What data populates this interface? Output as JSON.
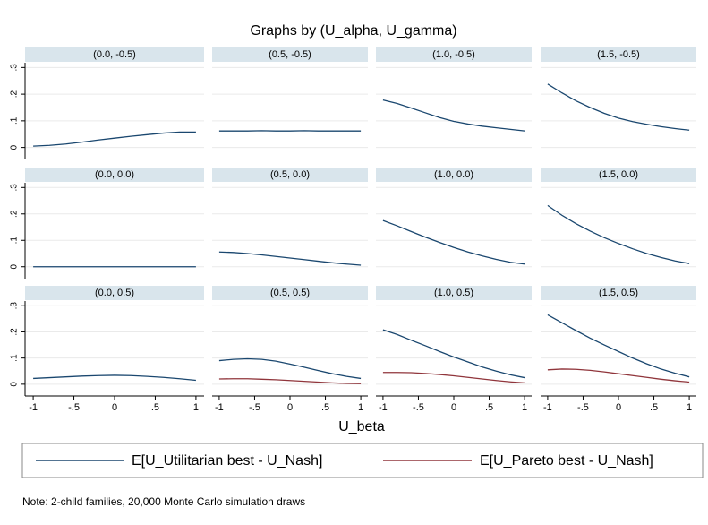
{
  "title": "Graphs by (U_alpha, U_gamma)",
  "xlabel": "U_beta",
  "note": "Note: 2-child families, 20,000 Monte Carlo simulation draws",
  "chart_data": [
    {
      "type": "line",
      "title": "(0.0, -0.5)",
      "x": [
        -1,
        -0.8,
        -0.6,
        -0.4,
        -0.2,
        0,
        0.2,
        0.4,
        0.6,
        0.8,
        1
      ],
      "series": [
        {
          "name": "E[U_Utilitarian best - U_Nash]",
          "color": "#1a476f",
          "values": [
            0.005,
            0.008,
            0.013,
            0.02,
            0.028,
            0.035,
            0.042,
            0.048,
            0.054,
            0.058,
            0.058
          ]
        }
      ],
      "xlim": [
        -1.1,
        1.1
      ],
      "xticks": [
        -1,
        {
          "value": -0.5,
          "label": "-.5"
        },
        0,
        {
          "value": 0.5,
          "label": ".5"
        },
        1
      ],
      "ylim": [
        -0.045,
        0.318
      ],
      "yticks": [
        0,
        {
          "value": 0.1,
          "label": ".1"
        },
        {
          "value": 0.2,
          "label": ".2"
        },
        {
          "value": 0.3,
          "label": ".3"
        }
      ],
      "grid": true
    },
    {
      "type": "line",
      "title": "(0.5, -0.5)",
      "x": [
        -1,
        -0.8,
        -0.6,
        -0.4,
        -0.2,
        0,
        0.2,
        0.4,
        0.6,
        0.8,
        1
      ],
      "series": [
        {
          "name": "E[U_Utilitarian best - U_Nash]",
          "color": "#1a476f",
          "values": [
            0.062,
            0.062,
            0.062,
            0.063,
            0.062,
            0.062,
            0.063,
            0.062,
            0.062,
            0.062,
            0.062
          ]
        }
      ],
      "xlim": [
        -1.1,
        1.1
      ],
      "xticks": [
        -1,
        {
          "value": -0.5,
          "label": "-.5"
        },
        0,
        {
          "value": 0.5,
          "label": ".5"
        },
        1
      ],
      "ylim": [
        -0.045,
        0.318
      ],
      "yticks": [
        0,
        {
          "value": 0.1,
          "label": ".1"
        },
        {
          "value": 0.2,
          "label": ".2"
        },
        {
          "value": 0.3,
          "label": ".3"
        }
      ],
      "grid": true
    },
    {
      "type": "line",
      "title": "(1.0, -0.5)",
      "x": [
        -1,
        -0.8,
        -0.6,
        -0.4,
        -0.2,
        0,
        0.2,
        0.4,
        0.6,
        0.8,
        1
      ],
      "series": [
        {
          "name": "E[U_Utilitarian best - U_Nash]",
          "color": "#1a476f",
          "values": [
            0.178,
            0.165,
            0.148,
            0.13,
            0.112,
            0.098,
            0.088,
            0.08,
            0.074,
            0.068,
            0.062
          ]
        }
      ],
      "xlim": [
        -1.1,
        1.1
      ],
      "xticks": [
        -1,
        {
          "value": -0.5,
          "label": "-.5"
        },
        0,
        {
          "value": 0.5,
          "label": ".5"
        },
        1
      ],
      "ylim": [
        -0.045,
        0.318
      ],
      "yticks": [
        0,
        {
          "value": 0.1,
          "label": ".1"
        },
        {
          "value": 0.2,
          "label": ".2"
        },
        {
          "value": 0.3,
          "label": ".3"
        }
      ],
      "grid": true
    },
    {
      "type": "line",
      "title": "(1.5, -0.5)",
      "x": [
        -1,
        -0.8,
        -0.6,
        -0.4,
        -0.2,
        0,
        0.2,
        0.4,
        0.6,
        0.8,
        1
      ],
      "series": [
        {
          "name": "E[U_Utilitarian best - U_Nash]",
          "color": "#1a476f",
          "values": [
            0.238,
            0.205,
            0.175,
            0.15,
            0.128,
            0.11,
            0.097,
            0.087,
            0.078,
            0.071,
            0.065
          ]
        }
      ],
      "xlim": [
        -1.1,
        1.1
      ],
      "xticks": [
        -1,
        {
          "value": -0.5,
          "label": "-.5"
        },
        0,
        {
          "value": 0.5,
          "label": ".5"
        },
        1
      ],
      "ylim": [
        -0.045,
        0.318
      ],
      "yticks": [
        0,
        {
          "value": 0.1,
          "label": ".1"
        },
        {
          "value": 0.2,
          "label": ".2"
        },
        {
          "value": 0.3,
          "label": ".3"
        }
      ],
      "grid": true
    },
    {
      "type": "line",
      "title": "(0.0, 0.0)",
      "x": [
        -1,
        -0.8,
        -0.6,
        -0.4,
        -0.2,
        0,
        0.2,
        0.4,
        0.6,
        0.8,
        1
      ],
      "series": [
        {
          "name": "E[U_Utilitarian best - U_Nash]",
          "color": "#1a476f",
          "values": [
            0,
            0,
            0,
            0,
            0,
            0,
            0,
            0,
            0,
            0,
            0
          ]
        }
      ],
      "xlim": [
        -1.1,
        1.1
      ],
      "xticks": [
        -1,
        {
          "value": -0.5,
          "label": "-.5"
        },
        0,
        {
          "value": 0.5,
          "label": ".5"
        },
        1
      ],
      "ylim": [
        -0.045,
        0.318
      ],
      "yticks": [
        0,
        {
          "value": 0.1,
          "label": ".1"
        },
        {
          "value": 0.2,
          "label": ".2"
        },
        {
          "value": 0.3,
          "label": ".3"
        }
      ],
      "grid": true
    },
    {
      "type": "line",
      "title": "(0.5, 0.0)",
      "x": [
        -1,
        -0.8,
        -0.6,
        -0.4,
        -0.2,
        0,
        0.2,
        0.4,
        0.6,
        0.8,
        1
      ],
      "series": [
        {
          "name": "E[U_Utilitarian best - U_Nash]",
          "color": "#1a476f",
          "values": [
            0.056,
            0.054,
            0.05,
            0.045,
            0.039,
            0.033,
            0.027,
            0.021,
            0.015,
            0.01,
            0.006
          ]
        }
      ],
      "xlim": [
        -1.1,
        1.1
      ],
      "xticks": [
        -1,
        {
          "value": -0.5,
          "label": "-.5"
        },
        0,
        {
          "value": 0.5,
          "label": ".5"
        },
        1
      ],
      "ylim": [
        -0.045,
        0.318
      ],
      "yticks": [
        0,
        {
          "value": 0.1,
          "label": ".1"
        },
        {
          "value": 0.2,
          "label": ".2"
        },
        {
          "value": 0.3,
          "label": ".3"
        }
      ],
      "grid": true
    },
    {
      "type": "line",
      "title": "(1.0, 0.0)",
      "x": [
        -1,
        -0.8,
        -0.6,
        -0.4,
        -0.2,
        0,
        0.2,
        0.4,
        0.6,
        0.8,
        1
      ],
      "series": [
        {
          "name": "E[U_Utilitarian best - U_Nash]",
          "color": "#1a476f",
          "values": [
            0.175,
            0.155,
            0.133,
            0.112,
            0.092,
            0.073,
            0.056,
            0.041,
            0.028,
            0.017,
            0.01
          ]
        }
      ],
      "xlim": [
        -1.1,
        1.1
      ],
      "xticks": [
        -1,
        {
          "value": -0.5,
          "label": "-.5"
        },
        0,
        {
          "value": 0.5,
          "label": ".5"
        },
        1
      ],
      "ylim": [
        -0.045,
        0.318
      ],
      "yticks": [
        0,
        {
          "value": 0.1,
          "label": ".1"
        },
        {
          "value": 0.2,
          "label": ".2"
        },
        {
          "value": 0.3,
          "label": ".3"
        }
      ],
      "grid": true
    },
    {
      "type": "line",
      "title": "(1.5, 0.0)",
      "x": [
        -1,
        -0.8,
        -0.6,
        -0.4,
        -0.2,
        0,
        0.2,
        0.4,
        0.6,
        0.8,
        1
      ],
      "series": [
        {
          "name": "E[U_Utilitarian best - U_Nash]",
          "color": "#1a476f",
          "values": [
            0.232,
            0.195,
            0.163,
            0.135,
            0.11,
            0.088,
            0.068,
            0.05,
            0.035,
            0.022,
            0.012
          ]
        }
      ],
      "xlim": [
        -1.1,
        1.1
      ],
      "xticks": [
        -1,
        {
          "value": -0.5,
          "label": "-.5"
        },
        0,
        {
          "value": 0.5,
          "label": ".5"
        },
        1
      ],
      "ylim": [
        -0.045,
        0.318
      ],
      "yticks": [
        0,
        {
          "value": 0.1,
          "label": ".1"
        },
        {
          "value": 0.2,
          "label": ".2"
        },
        {
          "value": 0.3,
          "label": ".3"
        }
      ],
      "grid": true
    },
    {
      "type": "line",
      "title": "(0.0, 0.5)",
      "x": [
        -1,
        -0.8,
        -0.6,
        -0.4,
        -0.2,
        0,
        0.2,
        0.4,
        0.6,
        0.8,
        1
      ],
      "series": [
        {
          "name": "E[U_Utilitarian best - U_Nash]",
          "color": "#1a476f",
          "values": [
            0.022,
            0.025,
            0.028,
            0.031,
            0.033,
            0.034,
            0.033,
            0.03,
            0.026,
            0.021,
            0.015
          ]
        }
      ],
      "xlim": [
        -1.1,
        1.1
      ],
      "xticks": [
        -1,
        {
          "value": -0.5,
          "label": "-.5"
        },
        0,
        {
          "value": 0.5,
          "label": ".5"
        },
        1
      ],
      "ylim": [
        -0.045,
        0.318
      ],
      "yticks": [
        0,
        {
          "value": 0.1,
          "label": ".1"
        },
        {
          "value": 0.2,
          "label": ".2"
        },
        {
          "value": 0.3,
          "label": ".3"
        }
      ],
      "grid": true
    },
    {
      "type": "line",
      "title": "(0.5, 0.5)",
      "x": [
        -1,
        -0.8,
        -0.6,
        -0.4,
        -0.2,
        0,
        0.2,
        0.4,
        0.6,
        0.8,
        1
      ],
      "series": [
        {
          "name": "E[U_Utilitarian best - U_Nash]",
          "color": "#1a476f",
          "values": [
            0.09,
            0.095,
            0.097,
            0.095,
            0.088,
            0.077,
            0.065,
            0.052,
            0.04,
            0.03,
            0.022
          ]
        },
        {
          "name": "E[U_Pareto best - U_Nash]",
          "color": "#90353b",
          "values": [
            0.02,
            0.021,
            0.021,
            0.019,
            0.017,
            0.014,
            0.011,
            0.008,
            0.005,
            0.003,
            0.002
          ]
        }
      ],
      "xlim": [
        -1.1,
        1.1
      ],
      "xticks": [
        -1,
        {
          "value": -0.5,
          "label": "-.5"
        },
        0,
        {
          "value": 0.5,
          "label": ".5"
        },
        1
      ],
      "ylim": [
        -0.045,
        0.318
      ],
      "yticks": [
        0,
        {
          "value": 0.1,
          "label": ".1"
        },
        {
          "value": 0.2,
          "label": ".2"
        },
        {
          "value": 0.3,
          "label": ".3"
        }
      ],
      "grid": true
    },
    {
      "type": "line",
      "title": "(1.0, 0.5)",
      "x": [
        -1,
        -0.8,
        -0.6,
        -0.4,
        -0.2,
        0,
        0.2,
        0.4,
        0.6,
        0.8,
        1
      ],
      "series": [
        {
          "name": "E[U_Utilitarian best - U_Nash]",
          "color": "#1a476f",
          "values": [
            0.208,
            0.19,
            0.168,
            0.147,
            0.125,
            0.104,
            0.085,
            0.066,
            0.05,
            0.036,
            0.025
          ]
        },
        {
          "name": "E[U_Pareto best - U_Nash]",
          "color": "#90353b",
          "values": [
            0.045,
            0.045,
            0.044,
            0.041,
            0.037,
            0.032,
            0.026,
            0.02,
            0.014,
            0.009,
            0.005
          ]
        }
      ],
      "xlim": [
        -1.1,
        1.1
      ],
      "xticks": [
        -1,
        {
          "value": -0.5,
          "label": "-.5"
        },
        0,
        {
          "value": 0.5,
          "label": ".5"
        },
        1
      ],
      "ylim": [
        -0.045,
        0.318
      ],
      "yticks": [
        0,
        {
          "value": 0.1,
          "label": ".1"
        },
        {
          "value": 0.2,
          "label": ".2"
        },
        {
          "value": 0.3,
          "label": ".3"
        }
      ],
      "grid": true
    },
    {
      "type": "line",
      "title": "(1.5, 0.5)",
      "x": [
        -1,
        -0.8,
        -0.6,
        -0.4,
        -0.2,
        0,
        0.2,
        0.4,
        0.6,
        0.8,
        1
      ],
      "series": [
        {
          "name": "E[U_Utilitarian best - U_Nash]",
          "color": "#1a476f",
          "values": [
            0.265,
            0.235,
            0.205,
            0.176,
            0.15,
            0.125,
            0.1,
            0.078,
            0.058,
            0.042,
            0.028
          ]
        },
        {
          "name": "E[U_Pareto best - U_Nash]",
          "color": "#90353b",
          "values": [
            0.055,
            0.058,
            0.057,
            0.053,
            0.047,
            0.04,
            0.033,
            0.026,
            0.019,
            0.013,
            0.008
          ]
        }
      ],
      "xlim": [
        -1.1,
        1.1
      ],
      "xticks": [
        -1,
        {
          "value": -0.5,
          "label": "-.5"
        },
        0,
        {
          "value": 0.5,
          "label": ".5"
        },
        1
      ],
      "ylim": [
        -0.045,
        0.318
      ],
      "yticks": [
        0,
        {
          "value": 0.1,
          "label": ".1"
        },
        {
          "value": 0.2,
          "label": ".2"
        },
        {
          "value": 0.3,
          "label": ".3"
        }
      ],
      "grid": true
    }
  ]
}
